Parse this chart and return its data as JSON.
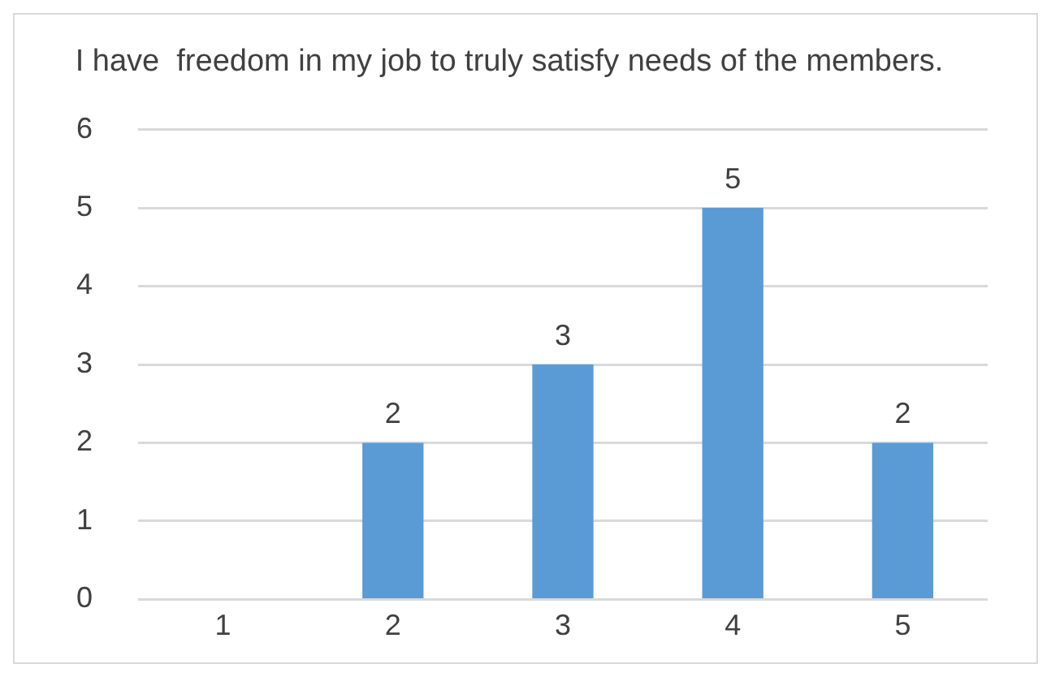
{
  "chart_data": {
    "type": "bar",
    "title": "I have  freedom in my job to truly satisfy needs of the members.",
    "categories": [
      "1",
      "2",
      "3",
      "4",
      "5"
    ],
    "values": [
      0,
      2,
      3,
      5,
      2
    ],
    "value_labels": [
      null,
      "2",
      "3",
      "5",
      "2"
    ],
    "color": "#5b9bd5",
    "ylim": [
      0,
      6
    ],
    "yticks": [
      0,
      1,
      2,
      3,
      4,
      5,
      6
    ],
    "grid": "y",
    "legend": false
  }
}
